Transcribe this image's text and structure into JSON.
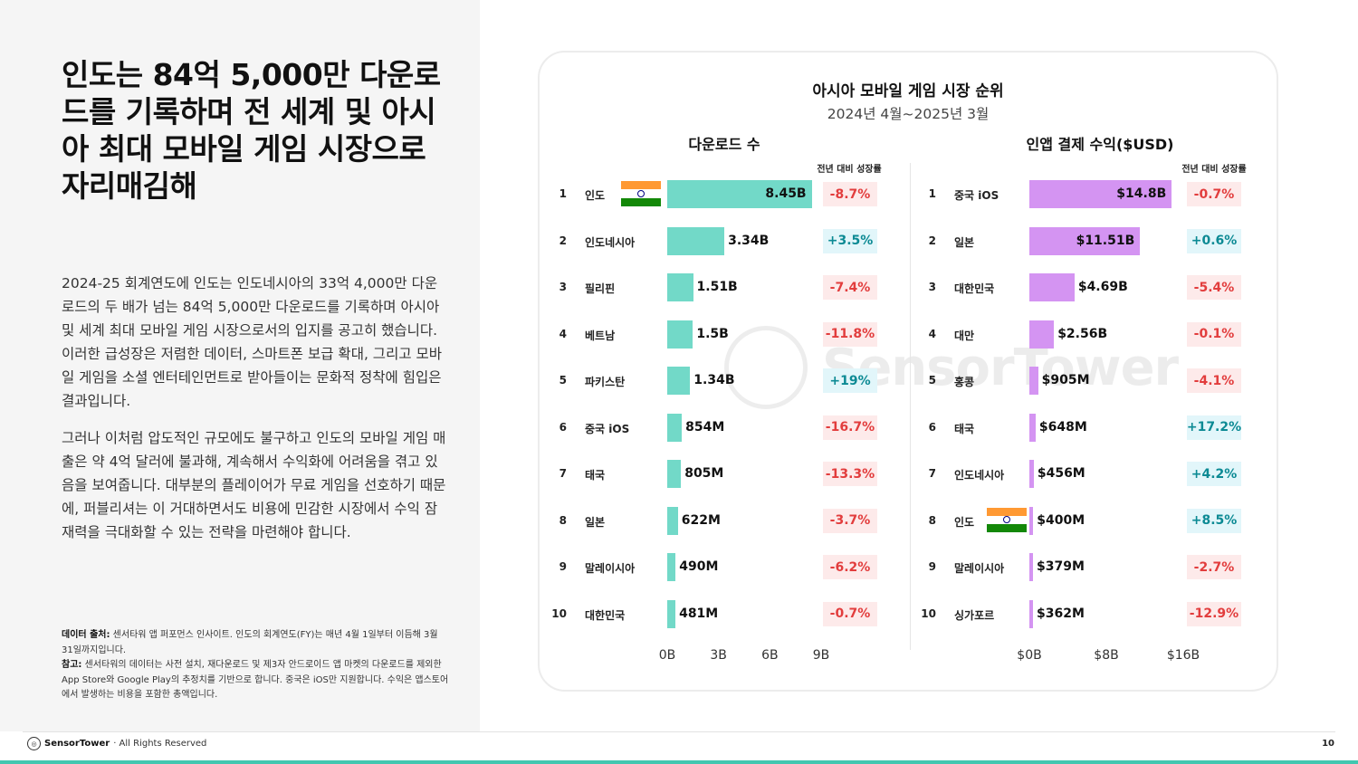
{
  "headline": "인도는 84억 5,000만 다운로드를 기록하며 전 세계 및 아시아 최대 모바일 게임 시장으로 자리매김해",
  "paragraphs": [
    "2024-25 회계연도에 인도는 인도네시아의 33억 4,000만 다운로드의 두 배가 넘는 84억 5,000만 다운로드를 기록하며 아시아 및 세계 최대 모바일 게임 시장으로서의 입지를 공고히 했습니다. 이러한 급성장은 저렴한 데이터, 스마트폰 보급 확대, 그리고 모바일 게임을 소셜 엔터테인먼트로 받아들이는 문화적 정착에 힘입은 결과입니다.",
    "그러나 이처럼 압도적인 규모에도 불구하고 인도의 모바일 게임 매출은 약 4억 달러에 불과해, 계속해서 수익화에 어려움을 겪고 있음을 보여줍니다. 대부분의 플레이어가 무료 게임을 선호하기 때문에, 퍼블리셔는 이 거대하면서도 비용에 민감한 시장에서 수익 잠재력을 극대화할 수 있는 전략을 마련해야 합니다."
  ],
  "footnote": {
    "source_label": "데이터 출처:",
    "source_text": "센서타워 앱 퍼포먼스 인사이트. 인도의 회계연도(FY)는 매년 4월 1일부터 이듬해 3월 31일까지입니다.",
    "note_label": "참고:",
    "note_text": "센서타워의 데이터는 사전 설치, 재다운로드 및 제3자 안드로이드 앱 마켓의 다운로드를 제외한 App Store와 Google Play의 추정치를 기반으로 합니다. 중국은 iOS만 지원합니다. 수익은 앱스토어에서 발생하는 비용을 포함한 총액입니다."
  },
  "footer": {
    "brand_name": "SensorTower",
    "rights": " · All Rights Reserved",
    "page_number": "10"
  },
  "watermark": "SensorTower",
  "chart_data": {
    "type": "bar",
    "title": "아시아 모바일 게임 시장 순위",
    "subtitle": "2024년 4월~2025년 3월",
    "growth_header": "전년 대비 성장률",
    "colors": {
      "downloads": "#72d9c8",
      "revenue": "#d494f2",
      "negative": "#e23d3d",
      "positive": "#0c8a94"
    },
    "panels": [
      {
        "key": "downloads",
        "title": "다운로드 수",
        "unit": "B",
        "xlim": [
          0,
          9
        ],
        "ticks": [
          "0B",
          "3B",
          "6B",
          "9B"
        ],
        "rows": [
          {
            "rank": "1",
            "country": "인도",
            "value": 8.45,
            "label": "8.45B",
            "growth": "-8.7%",
            "flag": "india-flag-icon"
          },
          {
            "rank": "2",
            "country": "인도네시아",
            "value": 3.34,
            "label": "3.34B",
            "growth": "+3.5%"
          },
          {
            "rank": "3",
            "country": "필리핀",
            "value": 1.51,
            "label": "1.51B",
            "growth": "-7.4%"
          },
          {
            "rank": "4",
            "country": "베트남",
            "value": 1.5,
            "label": "1.5B",
            "growth": "-11.8%"
          },
          {
            "rank": "5",
            "country": "파키스탄",
            "value": 1.34,
            "label": "1.34B",
            "growth": "+19%"
          },
          {
            "rank": "6",
            "country": "중국 iOS",
            "value": 0.854,
            "label": "854M",
            "growth": "-16.7%"
          },
          {
            "rank": "7",
            "country": "태국",
            "value": 0.805,
            "label": "805M",
            "growth": "-13.3%"
          },
          {
            "rank": "8",
            "country": "일본",
            "value": 0.622,
            "label": "622M",
            "growth": "-3.7%"
          },
          {
            "rank": "9",
            "country": "말레이시아",
            "value": 0.49,
            "label": "490M",
            "growth": "-6.2%"
          },
          {
            "rank": "10",
            "country": "대한민국",
            "value": 0.481,
            "label": "481M",
            "growth": "-0.7%"
          }
        ]
      },
      {
        "key": "revenue",
        "title": "인앱 결제 수익($USD)",
        "unit": "$B",
        "xlim": [
          0,
          16
        ],
        "ticks": [
          "$0B",
          "$8B",
          "$16B"
        ],
        "rows": [
          {
            "rank": "1",
            "country": "중국 iOS",
            "value": 14.8,
            "label": "$14.8B",
            "growth": "-0.7%"
          },
          {
            "rank": "2",
            "country": "일본",
            "value": 11.51,
            "label": "$11.51B",
            "growth": "+0.6%"
          },
          {
            "rank": "3",
            "country": "대한민국",
            "value": 4.69,
            "label": "$4.69B",
            "growth": "-5.4%"
          },
          {
            "rank": "4",
            "country": "대만",
            "value": 2.56,
            "label": "$2.56B",
            "growth": "-0.1%"
          },
          {
            "rank": "5",
            "country": "홍콩",
            "value": 0.905,
            "label": "$905M",
            "growth": "-4.1%"
          },
          {
            "rank": "6",
            "country": "태국",
            "value": 0.648,
            "label": "$648M",
            "growth": "+17.2%"
          },
          {
            "rank": "7",
            "country": "인도네시아",
            "value": 0.456,
            "label": "$456M",
            "growth": "+4.2%"
          },
          {
            "rank": "8",
            "country": "인도",
            "value": 0.4,
            "label": "$400M",
            "growth": "+8.5%",
            "flag": "india-flag-icon"
          },
          {
            "rank": "9",
            "country": "말레이시아",
            "value": 0.379,
            "label": "$379M",
            "growth": "-2.7%"
          },
          {
            "rank": "10",
            "country": "싱가포르",
            "value": 0.362,
            "label": "$362M",
            "growth": "-12.9%"
          }
        ]
      }
    ]
  }
}
